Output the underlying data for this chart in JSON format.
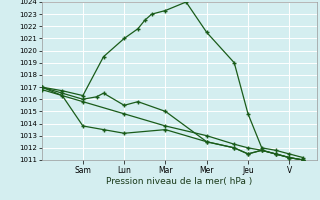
{
  "xlabel": "Pression niveau de la mer( hPa )",
  "bg_color": "#d4eef0",
  "grid_color": "#ffffff",
  "line_color": "#1a5c1a",
  "ylim": [
    1011,
    1024
  ],
  "yticks": [
    1011,
    1012,
    1013,
    1014,
    1015,
    1016,
    1017,
    1018,
    1019,
    1020,
    1021,
    1022,
    1023,
    1024
  ],
  "day_labels": [
    "Sam",
    "Lun",
    "Mar",
    "Mer",
    "Jeu",
    "V"
  ],
  "day_positions": [
    3,
    6,
    9,
    12,
    15,
    18
  ],
  "xlim": [
    0,
    20
  ],
  "series": [
    {
      "x": [
        0,
        1.5,
        3,
        4.5,
        6,
        7,
        7.5,
        8,
        9,
        10.5,
        12,
        14,
        15,
        16,
        17,
        18,
        19
      ],
      "y": [
        1017.0,
        1016.7,
        1016.3,
        1019.5,
        1021.0,
        1021.8,
        1022.5,
        1023.0,
        1023.3,
        1024.0,
        1021.5,
        1019.0,
        1014.8,
        1012.0,
        1011.8,
        1011.5,
        1011.2
      ]
    },
    {
      "x": [
        0,
        1.5,
        3,
        4,
        4.5,
        6,
        7,
        9,
        12,
        14,
        15,
        16,
        17,
        18,
        19
      ],
      "y": [
        1017.0,
        1016.5,
        1016.0,
        1016.2,
        1016.5,
        1015.5,
        1015.8,
        1015.0,
        1012.5,
        1012.0,
        1011.5,
        1011.8,
        1011.5,
        1011.2,
        1011.0
      ]
    },
    {
      "x": [
        0,
        3,
        6,
        9,
        12,
        14,
        15,
        16,
        17,
        18,
        19
      ],
      "y": [
        1016.8,
        1015.8,
        1014.8,
        1013.8,
        1013.0,
        1012.3,
        1012.0,
        1011.8,
        1011.5,
        1011.2,
        1011.0
      ]
    },
    {
      "x": [
        0,
        1.5,
        3,
        4.5,
        6,
        9,
        12,
        14,
        15,
        16,
        17,
        18,
        19
      ],
      "y": [
        1017.0,
        1016.3,
        1013.8,
        1013.5,
        1013.2,
        1013.5,
        1012.5,
        1012.0,
        1011.5,
        1011.8,
        1011.5,
        1011.2,
        1011.0
      ]
    }
  ]
}
